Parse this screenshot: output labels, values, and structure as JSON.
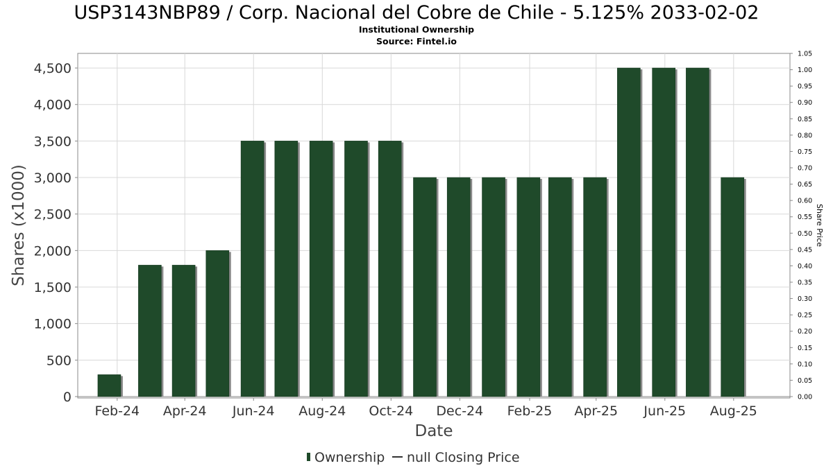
{
  "chart_data": {
    "type": "bar",
    "title": "USP3143NBP89 / Corp. Nacional del Cobre de Chile - 5.125% 2033-02-02",
    "subtitle_lines": [
      "Institutional Ownership",
      "Source: Fintel.io"
    ],
    "xlabel": "Date",
    "ylabel": "Shares (x1000)",
    "y2label": "Share Price",
    "ylim": [
      0,
      4700
    ],
    "y2lim": [
      0,
      1.05
    ],
    "xlim": [
      "2023-12-28",
      "2025-09-20"
    ],
    "y_ticks": [
      {
        "value": 0,
        "label": "0"
      },
      {
        "value": 500,
        "label": "500"
      },
      {
        "value": 1000,
        "label": "1,000"
      },
      {
        "value": 1500,
        "label": "1,500"
      },
      {
        "value": 2000,
        "label": "2,000"
      },
      {
        "value": 2500,
        "label": "2,500"
      },
      {
        "value": 3000,
        "label": "3,000"
      },
      {
        "value": 3500,
        "label": "3,500"
      },
      {
        "value": 4000,
        "label": "4,000"
      },
      {
        "value": 4500,
        "label": "4,500"
      }
    ],
    "y2_ticks": [
      "0.00",
      "0.05",
      "0.10",
      "0.15",
      "0.20",
      "0.25",
      "0.30",
      "0.35",
      "0.40",
      "0.45",
      "0.50",
      "0.55",
      "0.60",
      "0.65",
      "0.70",
      "0.75",
      "0.80",
      "0.85",
      "0.90",
      "0.95",
      "1.00",
      "1.05"
    ],
    "x_ticks": [
      {
        "date": "2024-02-01",
        "label": "Feb-24"
      },
      {
        "date": "2024-04-01",
        "label": "Apr-24"
      },
      {
        "date": "2024-06-01",
        "label": "Jun-24"
      },
      {
        "date": "2024-08-01",
        "label": "Aug-24"
      },
      {
        "date": "2024-10-01",
        "label": "Oct-24"
      },
      {
        "date": "2024-12-01",
        "label": "Dec-24"
      },
      {
        "date": "2025-02-01",
        "label": "Feb-25"
      },
      {
        "date": "2025-04-01",
        "label": "Apr-25"
      },
      {
        "date": "2025-06-01",
        "label": "Jun-25"
      },
      {
        "date": "2025-08-01",
        "label": "Aug-25"
      }
    ],
    "series": [
      {
        "name": "Ownership",
        "color": "#1f4a2a",
        "x": [
          "2024-01-25",
          "2024-03-01",
          "2024-03-31",
          "2024-04-30",
          "2024-05-31",
          "2024-06-30",
          "2024-07-31",
          "2024-08-31",
          "2024-09-30",
          "2024-10-31",
          "2024-11-30",
          "2024-12-31",
          "2025-01-31",
          "2025-02-28",
          "2025-03-31",
          "2025-04-30",
          "2025-05-31",
          "2025-06-30",
          "2025-07-31"
        ],
        "values": [
          300,
          1800,
          1800,
          2000,
          3500,
          3500,
          3500,
          3500,
          3500,
          3000,
          3000,
          3000,
          3000,
          3000,
          3000,
          4500,
          4500,
          4500,
          3000
        ]
      },
      {
        "name": "null Closing Price",
        "color": "#000000",
        "values": []
      }
    ],
    "legend": {
      "placement": "bottom-center",
      "items": [
        "Ownership",
        "null Closing Price"
      ]
    },
    "grid": true
  }
}
